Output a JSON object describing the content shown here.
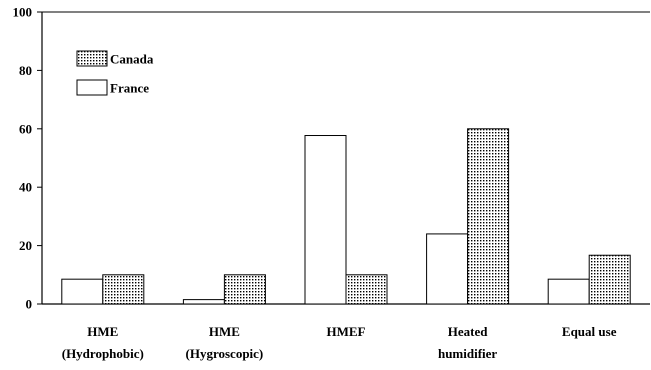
{
  "chart_data": {
    "type": "bar",
    "categories": [
      [
        "HME",
        "(Hydrophobic)"
      ],
      [
        "HME",
        "(Hygroscopic)"
      ],
      [
        "HMEF"
      ],
      [
        "Heated",
        "humidifier"
      ],
      [
        "Equal use"
      ]
    ],
    "series": [
      {
        "name": "France",
        "values": [
          8.5,
          1.5,
          57.7,
          24.0,
          8.5
        ],
        "fill": "#ffffff",
        "pattern": "none"
      },
      {
        "name": "Canada",
        "values": [
          10.0,
          10.0,
          10.0,
          60.0,
          16.7
        ],
        "fill": "#ffffff",
        "pattern": "dots"
      }
    ],
    "legend": {
      "placement": "top-left",
      "order": [
        "Canada",
        "France"
      ]
    },
    "ylim": [
      0,
      100
    ],
    "yticks": [
      0,
      20,
      40,
      60,
      80,
      100
    ],
    "grid": false,
    "title": "",
    "xlabel": "",
    "ylabel": ""
  }
}
